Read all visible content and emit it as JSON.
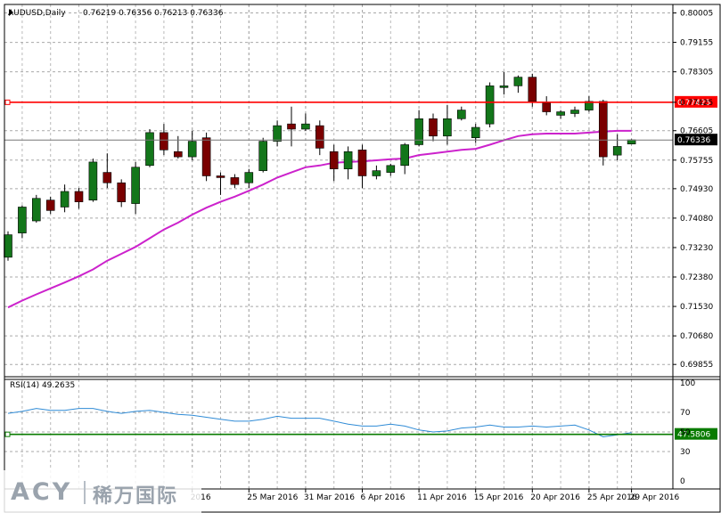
{
  "chart_data": {
    "type": "candlestick",
    "title": "AUDUSD,Daily",
    "ohlc_header": "0.76219 0.76356 0.76213 0.76336",
    "price_ticks": [
      "0.80005",
      "0.79155",
      "0.78305",
      "0.77425",
      "0.76605",
      "0.76336",
      "0.75755",
      "0.74930",
      "0.74080",
      "0.73230",
      "0.72380",
      "0.71530",
      "0.70680",
      "0.69855"
    ],
    "price_range": [
      0.695,
      0.8025
    ],
    "date_labels": [
      {
        "label": "2016",
        "index": 13
      },
      {
        "label": "25 Mar 2016",
        "index": 17
      },
      {
        "label": "31 Mar 2016",
        "index": 21
      },
      {
        "label": "6 Apr 2016",
        "index": 25
      },
      {
        "label": "11 Apr 2016",
        "index": 29
      },
      {
        "label": "15 Apr 2016",
        "index": 33
      },
      {
        "label": "20 Apr 2016",
        "index": 37
      },
      {
        "label": "25 Apr 2016",
        "index": 41
      },
      {
        "label": "29 Apr 2016",
        "index": 44
      }
    ],
    "candles": [
      {
        "o": 0.7295,
        "h": 0.737,
        "l": 0.7285,
        "c": 0.736
      },
      {
        "o": 0.7365,
        "h": 0.7445,
        "l": 0.735,
        "c": 0.744
      },
      {
        "o": 0.74,
        "h": 0.7475,
        "l": 0.7395,
        "c": 0.7465
      },
      {
        "o": 0.746,
        "h": 0.747,
        "l": 0.742,
        "c": 0.743
      },
      {
        "o": 0.744,
        "h": 0.7505,
        "l": 0.7425,
        "c": 0.7485
      },
      {
        "o": 0.7485,
        "h": 0.7495,
        "l": 0.7435,
        "c": 0.7455
      },
      {
        "o": 0.746,
        "h": 0.758,
        "l": 0.7455,
        "c": 0.757
      },
      {
        "o": 0.754,
        "h": 0.7595,
        "l": 0.7495,
        "c": 0.751
      },
      {
        "o": 0.751,
        "h": 0.752,
        "l": 0.744,
        "c": 0.7455
      },
      {
        "o": 0.745,
        "h": 0.757,
        "l": 0.742,
        "c": 0.7555
      },
      {
        "o": 0.756,
        "h": 0.7665,
        "l": 0.7555,
        "c": 0.7655
      },
      {
        "o": 0.7655,
        "h": 0.768,
        "l": 0.759,
        "c": 0.7605
      },
      {
        "o": 0.76,
        "h": 0.7645,
        "l": 0.758,
        "c": 0.7585
      },
      {
        "o": 0.7585,
        "h": 0.766,
        "l": 0.7575,
        "c": 0.763
      },
      {
        "o": 0.764,
        "h": 0.7655,
        "l": 0.7515,
        "c": 0.753
      },
      {
        "o": 0.753,
        "h": 0.754,
        "l": 0.7475,
        "c": 0.7525
      },
      {
        "o": 0.7525,
        "h": 0.7535,
        "l": 0.7495,
        "c": 0.7505
      },
      {
        "o": 0.751,
        "h": 0.755,
        "l": 0.7495,
        "c": 0.754
      },
      {
        "o": 0.7545,
        "h": 0.764,
        "l": 0.754,
        "c": 0.763
      },
      {
        "o": 0.763,
        "h": 0.769,
        "l": 0.7615,
        "c": 0.7675
      },
      {
        "o": 0.768,
        "h": 0.773,
        "l": 0.7615,
        "c": 0.7665
      },
      {
        "o": 0.7665,
        "h": 0.771,
        "l": 0.766,
        "c": 0.768
      },
      {
        "o": 0.7675,
        "h": 0.769,
        "l": 0.759,
        "c": 0.761
      },
      {
        "o": 0.76,
        "h": 0.762,
        "l": 0.7515,
        "c": 0.755
      },
      {
        "o": 0.755,
        "h": 0.7615,
        "l": 0.752,
        "c": 0.76
      },
      {
        "o": 0.7605,
        "h": 0.762,
        "l": 0.7495,
        "c": 0.753
      },
      {
        "o": 0.753,
        "h": 0.756,
        "l": 0.752,
        "c": 0.7545
      },
      {
        "o": 0.754,
        "h": 0.7565,
        "l": 0.753,
        "c": 0.756
      },
      {
        "o": 0.756,
        "h": 0.7625,
        "l": 0.7535,
        "c": 0.762
      },
      {
        "o": 0.762,
        "h": 0.772,
        "l": 0.7615,
        "c": 0.7695
      },
      {
        "o": 0.7695,
        "h": 0.771,
        "l": 0.763,
        "c": 0.7645
      },
      {
        "o": 0.7645,
        "h": 0.7735,
        "l": 0.762,
        "c": 0.7695
      },
      {
        "o": 0.7695,
        "h": 0.773,
        "l": 0.769,
        "c": 0.772
      },
      {
        "o": 0.764,
        "h": 0.768,
        "l": 0.7625,
        "c": 0.767
      },
      {
        "o": 0.768,
        "h": 0.78,
        "l": 0.767,
        "c": 0.779
      },
      {
        "o": 0.7785,
        "h": 0.783,
        "l": 0.7765,
        "c": 0.779
      },
      {
        "o": 0.779,
        "h": 0.782,
        "l": 0.777,
        "c": 0.7815
      },
      {
        "o": 0.7815,
        "h": 0.7825,
        "l": 0.773,
        "c": 0.7745
      },
      {
        "o": 0.774,
        "h": 0.776,
        "l": 0.7705,
        "c": 0.7715
      },
      {
        "o": 0.7705,
        "h": 0.772,
        "l": 0.7695,
        "c": 0.7715
      },
      {
        "o": 0.771,
        "h": 0.773,
        "l": 0.77,
        "c": 0.772
      },
      {
        "o": 0.772,
        "h": 0.776,
        "l": 0.7715,
        "c": 0.7745
      },
      {
        "o": 0.7745,
        "h": 0.775,
        "l": 0.756,
        "c": 0.7585
      },
      {
        "o": 0.759,
        "h": 0.765,
        "l": 0.7575,
        "c": 0.7615
      },
      {
        "o": 0.7622,
        "h": 0.7636,
        "l": 0.7621,
        "c": 0.7634
      }
    ],
    "ma": [
      0.715,
      0.717,
      0.7188,
      0.7205,
      0.7222,
      0.724,
      0.726,
      0.7285,
      0.7305,
      0.7325,
      0.735,
      0.7375,
      0.7395,
      0.7418,
      0.7438,
      0.7455,
      0.747,
      0.7487,
      0.7505,
      0.7525,
      0.754,
      0.7555,
      0.756,
      0.7568,
      0.757,
      0.7572,
      0.7575,
      0.7578,
      0.758,
      0.759,
      0.7595,
      0.76,
      0.7605,
      0.7608,
      0.762,
      0.7633,
      0.7645,
      0.765,
      0.7652,
      0.7652,
      0.7652,
      0.7655,
      0.7658,
      0.766,
      0.766
    ],
    "resistance_level": 0.77425,
    "resistance_label": "0.77425",
    "current_price": 0.76336,
    "current_label": "0.76336",
    "rsi": {
      "title": "RSI(14) 49.2635",
      "ticks": [
        {
          "label": "100",
          "v": 100
        },
        {
          "label": "70",
          "v": 70
        },
        {
          "label": "50",
          "v": 50
        },
        {
          "label": "30",
          "v": 30
        },
        {
          "label": "0",
          "v": 0
        }
      ],
      "level": 47.5806,
      "level_label": "47.5806",
      "values": [
        69,
        71,
        74,
        72,
        72,
        74,
        74,
        71,
        69,
        71,
        72,
        70,
        68,
        67,
        65,
        63,
        61,
        61,
        63,
        66,
        64,
        64,
        64,
        61,
        58,
        56,
        56,
        58,
        56,
        52,
        50,
        51,
        54,
        55,
        57,
        55,
        55,
        56,
        55,
        56,
        57,
        52,
        45,
        47,
        49.26
      ]
    },
    "colors": {
      "bull": "#13761a",
      "bear": "#7a0000",
      "ma": "#cc22cc",
      "resistance": "#ff0000",
      "rsi": "#2f8bd6",
      "rsi_level": "#097b00",
      "grid": "#a9a9a9"
    }
  },
  "watermark": {
    "brand": "ACY",
    "chinese": "稀万国际"
  }
}
